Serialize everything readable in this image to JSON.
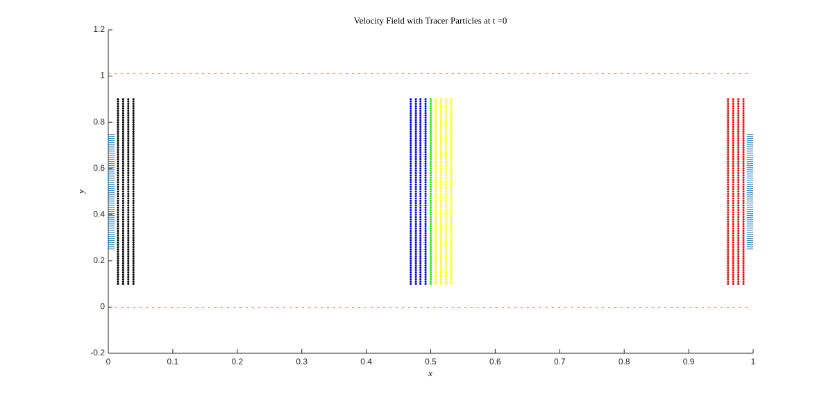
{
  "chart_data": {
    "type": "line",
    "title": "Velocity Field with Tracer Particles at t =0",
    "x_label": "x",
    "y_label": "y",
    "xlim": [
      0,
      1
    ],
    "ylim": [
      -0.2,
      1.2
    ],
    "xticks": [
      0,
      0.1,
      0.2,
      0.3,
      0.4,
      0.5,
      0.6,
      0.7,
      0.8,
      0.9,
      1
    ],
    "yticks": [
      -0.2,
      0,
      0.2,
      0.4,
      0.6,
      0.8,
      1,
      1.2
    ],
    "series": [
      {
        "color": "#d95319",
        "style": "dashed",
        "x": [
          0,
          0.995
        ],
        "values": [
          1.012,
          1.012
        ]
      },
      {
        "color": "#d95319",
        "style": "dashed",
        "x": [
          0,
          0.995
        ],
        "values": [
          -0.003,
          -0.003
        ]
      },
      {
        "color": "#0072bd",
        "style": "hatch",
        "x": [
          0,
          0
        ],
        "values": [
          0.25,
          0.75
        ]
      },
      {
        "color": "#0072bd",
        "style": "hatch",
        "x": [
          0.99,
          0.99
        ],
        "values": [
          0.25,
          0.75
        ]
      },
      {
        "color": "#000000",
        "style": "dots",
        "x": [
          0.015,
          0.015
        ],
        "values": [
          0.1,
          0.9
        ]
      },
      {
        "color": "#000000",
        "style": "dots",
        "x": [
          0.023,
          0.023
        ],
        "values": [
          0.1,
          0.9
        ]
      },
      {
        "color": "#000000",
        "style": "dots",
        "x": [
          0.031,
          0.031
        ],
        "values": [
          0.1,
          0.9
        ]
      },
      {
        "color": "#000000",
        "style": "dots",
        "x": [
          0.039,
          0.039
        ],
        "values": [
          0.1,
          0.9
        ]
      },
      {
        "color": "#0000ff",
        "style": "dots",
        "x": [
          0.469,
          0.469
        ],
        "values": [
          0.1,
          0.9
        ]
      },
      {
        "color": "#0000ff",
        "style": "dots",
        "x": [
          0.477,
          0.477
        ],
        "values": [
          0.1,
          0.9
        ]
      },
      {
        "color": "#0000ff",
        "style": "dots",
        "x": [
          0.484,
          0.484
        ],
        "values": [
          0.1,
          0.9
        ]
      },
      {
        "color": "#0000ff",
        "style": "dots",
        "x": [
          0.492,
          0.492
        ],
        "values": [
          0.1,
          0.9
        ]
      },
      {
        "color": "#00ff00",
        "style": "dots",
        "x": [
          0.5,
          0.5
        ],
        "values": [
          0.1,
          0.9
        ]
      },
      {
        "color": "#ffff00",
        "style": "dots",
        "x": [
          0.508,
          0.508
        ],
        "values": [
          0.1,
          0.9
        ]
      },
      {
        "color": "#ffff00",
        "style": "dots",
        "x": [
          0.516,
          0.516
        ],
        "values": [
          0.1,
          0.9
        ]
      },
      {
        "color": "#ffff00",
        "style": "dots",
        "x": [
          0.524,
          0.524
        ],
        "values": [
          0.1,
          0.9
        ]
      },
      {
        "color": "#ffff00",
        "style": "dots",
        "x": [
          0.532,
          0.532
        ],
        "values": [
          0.1,
          0.9
        ]
      },
      {
        "color": "#ff0000",
        "style": "dots",
        "x": [
          0.961,
          0.961
        ],
        "values": [
          0.1,
          0.9
        ]
      },
      {
        "color": "#ff0000",
        "style": "dots",
        "x": [
          0.969,
          0.969
        ],
        "values": [
          0.1,
          0.9
        ]
      },
      {
        "color": "#ff0000",
        "style": "dots",
        "x": [
          0.977,
          0.977
        ],
        "values": [
          0.1,
          0.9
        ]
      },
      {
        "color": "#ff0000",
        "style": "dots",
        "x": [
          0.985,
          0.985
        ],
        "values": [
          0.1,
          0.9
        ]
      }
    ]
  }
}
